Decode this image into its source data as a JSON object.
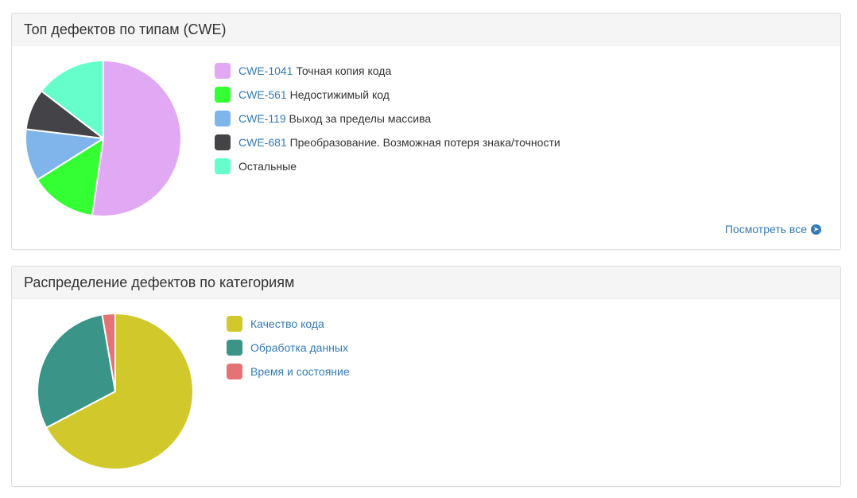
{
  "cwe_panel": {
    "title": "Топ дефектов по типам (CWE)",
    "view_all_label": "Посмотреть все",
    "view_all_icon": "arrow-circle-right-icon",
    "legend": [
      {
        "code": "CWE-1041",
        "label": "Точная копия кода",
        "color": "#e1a8f3"
      },
      {
        "code": "CWE-561",
        "label": "Недостижимый код",
        "color": "#33ff33"
      },
      {
        "code": "CWE-119",
        "label": "Выход за пределы массива",
        "color": "#7fb5ea"
      },
      {
        "code": "CWE-681",
        "label": "Преобразование. Возможная потеря знака/точности",
        "color": "#434348"
      },
      {
        "code": "",
        "label": "Остальные",
        "color": "#66ffcc"
      }
    ]
  },
  "category_panel": {
    "title": "Распределение дефектов по категориям",
    "legend": [
      {
        "label": "Качество кода",
        "color": "#d1c92c"
      },
      {
        "label": "Обработка данных",
        "color": "#3a9488"
      },
      {
        "label": "Время и состояние",
        "color": "#e57373"
      }
    ]
  },
  "chart_data": [
    {
      "type": "pie",
      "title": "Топ дефектов по типам (CWE)",
      "legend_position": "right",
      "start_angle_deg": 0,
      "direction": "clockwise",
      "categories": [
        "CWE-1041",
        "CWE-561",
        "CWE-119",
        "CWE-681",
        "Остальные"
      ],
      "values": [
        52.3,
        13.8,
        10.8,
        8.5,
        14.6
      ],
      "colors": [
        "#e1a8f3",
        "#33ff33",
        "#7fb5ea",
        "#434348",
        "#66ffcc"
      ]
    },
    {
      "type": "pie",
      "title": "Распределение дефектов по категориям",
      "legend_position": "right",
      "start_angle_deg": 0,
      "direction": "clockwise",
      "categories": [
        "Качество кода",
        "Обработка данных",
        "Время и состояние"
      ],
      "values": [
        67.3,
        30.0,
        2.7
      ],
      "colors": [
        "#d1c92c",
        "#3a9488",
        "#e57373"
      ]
    }
  ]
}
